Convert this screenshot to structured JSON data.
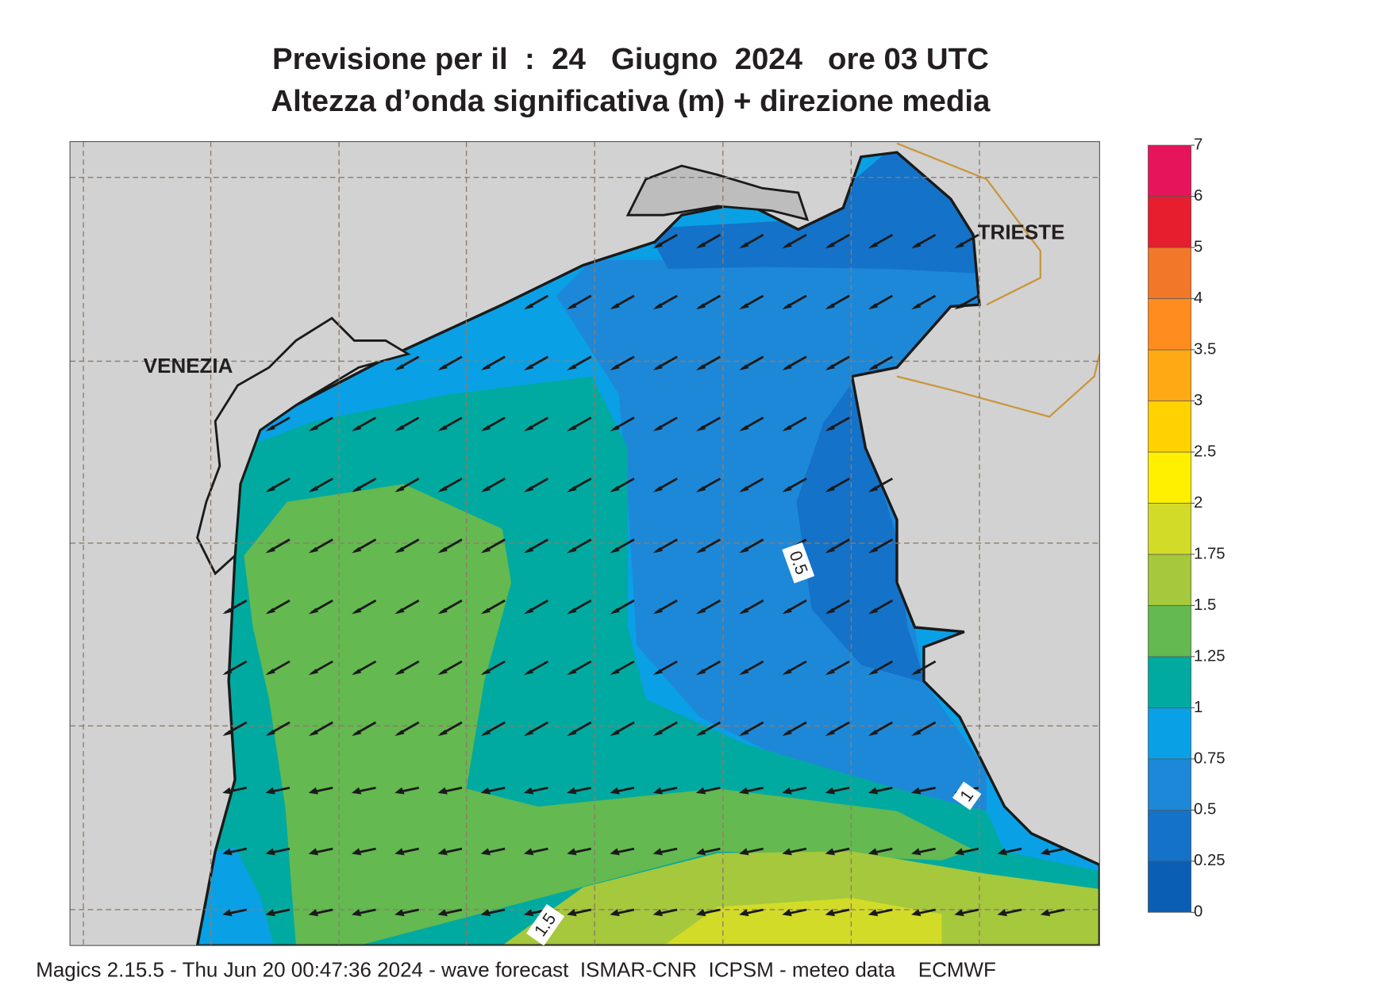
{
  "title": [
    "Previsione per il  :  24   Giugno  2024   ore 03 UTC",
    "Altezza d’onda significativa (m) + direzione media"
  ],
  "map": {
    "cities": [
      "VENEZIA",
      "TRIESTE"
    ],
    "contour_labels": [
      "0.5",
      "1",
      "1.5"
    ]
  },
  "colorbar": {
    "ticks": [
      0,
      0.25,
      0.5,
      0.75,
      1,
      1.25,
      1.5,
      1.75,
      2,
      2.5,
      3,
      3.5,
      4,
      5,
      6,
      7
    ],
    "colors": [
      "#0a5fb4",
      "#1472c8",
      "#1e88d8",
      "#0aa0e6",
      "#00aaa0",
      "#64b950",
      "#a5c83c",
      "#d2dc28",
      "#fff000",
      "#ffd200",
      "#ffaa14",
      "#ff8c1e",
      "#f07828",
      "#e61e2d",
      "#e6145a"
    ]
  },
  "footer": "Magics 2.15.5 - Thu Jun 20 00:47:36 2024 - wave forecast  ISMAR-CNR  ICPSM - meteo data    ECMWF"
}
